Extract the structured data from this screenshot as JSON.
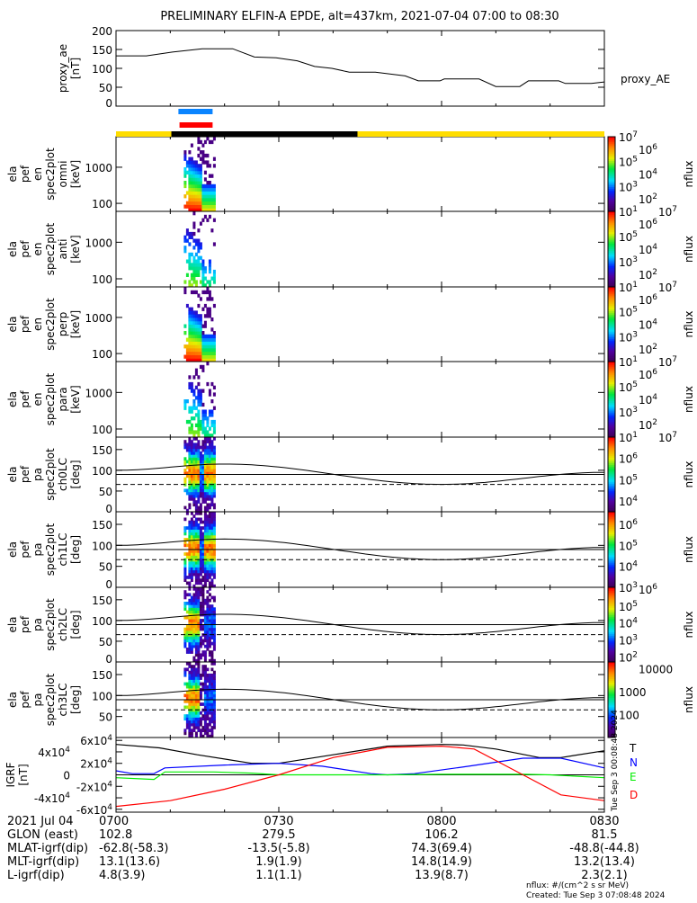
{
  "title": "PRELIMINARY ELFIN-A EPDE, alt=437km, 2021-07-04 07:00 to 08:30",
  "colors": {
    "blue_bar": "#0a84ff",
    "red_bar": "#ff0000",
    "sun": "#ffdd00",
    "shadow": "#000000",
    "T": "#000000",
    "N": "#0000ff",
    "E": "#00ee00",
    "D": "#ff0000"
  },
  "chart_data": [
    {
      "type": "line",
      "name": "proxy_ae",
      "ylabel_lines": [
        "proxy_ae",
        "[nT]"
      ],
      "legend": "proxy_AE",
      "ylim": [
        0,
        200
      ],
      "yticks": [
        "0",
        "50",
        "100",
        "150",
        "200"
      ],
      "ytick_values": [
        0,
        50,
        100,
        150,
        200
      ],
      "x_minutes": [
        0,
        5.6,
        10.4,
        15.9,
        21.5,
        25.5,
        29.5,
        33.4,
        36.6,
        39.8,
        43,
        47.8,
        53.3,
        55.7,
        59.7,
        60.5,
        66.9,
        70,
        74.4,
        76,
        81.6,
        82.8,
        87.6,
        90
      ],
      "values": [
        133,
        133,
        143,
        152,
        152,
        130,
        128,
        120,
        105,
        100,
        90,
        90,
        80,
        67,
        67,
        72,
        72,
        52,
        52,
        67,
        67,
        60,
        60,
        64
      ]
    },
    {
      "type": "heatmap",
      "name": "spec-omni",
      "ylabel_lines": [
        "ela",
        "pef",
        "en",
        "spec2plot",
        "omni",
        "[keV]"
      ],
      "yscale": "log",
      "ylim": [
        60,
        7000
      ],
      "yticks": [
        "100",
        "1000"
      ],
      "ytick_values": [
        100,
        1000
      ],
      "active_minutes": [
        12.5,
        18.3
      ],
      "colorbar": {
        "label": "nflux",
        "ticks": [
          {
            "b": "10",
            "e": "7"
          },
          {
            "b": "10",
            "e": "6"
          },
          {
            "b": "10",
            "e": "5"
          },
          {
            "b": "10",
            "e": "4"
          },
          {
            "b": "10",
            "e": "3"
          },
          {
            "b": "10",
            "e": "2"
          },
          {
            "b": "10",
            "e": "1"
          }
        ],
        "range_exp": [
          1,
          7
        ]
      }
    },
    {
      "type": "heatmap",
      "name": "spec-anti",
      "ylabel_lines": [
        "ela",
        "pef",
        "en",
        "spec2plot",
        "anti",
        "[keV]"
      ],
      "yscale": "log",
      "ylim": [
        60,
        7000
      ],
      "yticks": [
        "100",
        "1000"
      ],
      "ytick_values": [
        100,
        1000
      ],
      "active_minutes": [
        12.5,
        18.3
      ],
      "colorbar": {
        "label": "nflux",
        "ticks": [
          {
            "b": "10",
            "e": "7"
          },
          {
            "b": "10",
            "e": "6"
          },
          {
            "b": "10",
            "e": "5"
          },
          {
            "b": "10",
            "e": "4"
          },
          {
            "b": "10",
            "e": "3"
          },
          {
            "b": "10",
            "e": "2"
          },
          {
            "b": "10",
            "e": "1"
          }
        ],
        "range_exp": [
          1,
          7
        ]
      }
    },
    {
      "type": "heatmap",
      "name": "spec-perp",
      "ylabel_lines": [
        "ela",
        "pef",
        "en",
        "spec2plot",
        "perp",
        "[keV]"
      ],
      "yscale": "log",
      "ylim": [
        60,
        7000
      ],
      "yticks": [
        "100",
        "1000"
      ],
      "ytick_values": [
        100,
        1000
      ],
      "active_minutes": [
        12.5,
        18.3
      ],
      "colorbar": {
        "label": "nflux",
        "ticks": [
          {
            "b": "10",
            "e": "7"
          },
          {
            "b": "10",
            "e": "6"
          },
          {
            "b": "10",
            "e": "5"
          },
          {
            "b": "10",
            "e": "4"
          },
          {
            "b": "10",
            "e": "3"
          },
          {
            "b": "10",
            "e": "2"
          },
          {
            "b": "10",
            "e": "1"
          }
        ],
        "range_exp": [
          1,
          7
        ]
      }
    },
    {
      "type": "heatmap",
      "name": "spec-para",
      "ylabel_lines": [
        "ela",
        "pef",
        "en",
        "spec2plot",
        "para",
        "[keV]"
      ],
      "yscale": "log",
      "ylim": [
        60,
        7000
      ],
      "yticks": [
        "100",
        "1000"
      ],
      "ytick_values": [
        100,
        1000
      ],
      "active_minutes": [
        12.5,
        18.3
      ],
      "colorbar": {
        "label": "nflux",
        "ticks": [
          {
            "b": "10",
            "e": "7"
          },
          {
            "b": "10",
            "e": "6"
          },
          {
            "b": "10",
            "e": "5"
          },
          {
            "b": "10",
            "e": "4"
          },
          {
            "b": "10",
            "e": "3"
          },
          {
            "b": "10",
            "e": "2"
          },
          {
            "b": "10",
            "e": "1"
          }
        ],
        "range_exp": [
          1,
          7
        ]
      }
    },
    {
      "type": "heatmap",
      "name": "pa-ch0LC",
      "ylabel_lines": [
        "ela",
        "pef",
        "pa",
        "spec2plot",
        "ch0LC",
        "[deg]"
      ],
      "ylim": [
        0,
        180
      ],
      "yticks": [
        "0",
        "50",
        "100",
        "150"
      ],
      "ytick_values": [
        0,
        50,
        100,
        150
      ],
      "active_minutes": [
        12.5,
        18.3
      ],
      "colorbar": {
        "label": "nflux",
        "ticks": [
          {
            "b": "10",
            "e": "7"
          },
          {
            "b": "10",
            "e": "6"
          },
          {
            "b": "10",
            "e": "5"
          },
          {
            "b": "10",
            "e": "4"
          }
        ],
        "range_exp": [
          3.5,
          7
        ]
      }
    },
    {
      "type": "heatmap",
      "name": "pa-ch1LC",
      "ylabel_lines": [
        "ela",
        "pef",
        "pa",
        "spec2plot",
        "ch1LC",
        "[deg]"
      ],
      "ylim": [
        0,
        180
      ],
      "yticks": [
        "0",
        "50",
        "100",
        "150"
      ],
      "ytick_values": [
        0,
        50,
        100,
        150
      ],
      "active_minutes": [
        12.5,
        18.3
      ],
      "colorbar": {
        "label": "nflux",
        "ticks": [
          {
            "b": "10",
            "e": "6"
          },
          {
            "b": "10",
            "e": "5"
          },
          {
            "b": "10",
            "e": "4"
          },
          {
            "b": "10",
            "e": "3"
          }
        ],
        "range_exp": [
          3,
          6.6
        ]
      }
    },
    {
      "type": "heatmap",
      "name": "pa-ch2LC",
      "ylabel_lines": [
        "ela",
        "pef",
        "pa",
        "spec2plot",
        "ch2LC",
        "[deg]"
      ],
      "ylim": [
        0,
        180
      ],
      "yticks": [
        "0",
        "50",
        "100",
        "150"
      ],
      "ytick_values": [
        0,
        50,
        100,
        150
      ],
      "active_minutes": [
        12.5,
        18.3
      ],
      "colorbar": {
        "label": "nflux",
        "ticks": [
          {
            "b": "10",
            "e": "6"
          },
          {
            "b": "10",
            "e": "5"
          },
          {
            "b": "10",
            "e": "4"
          },
          {
            "b": "10",
            "e": "3"
          },
          {
            "b": "10",
            "e": "2"
          }
        ],
        "range_exp": [
          1.7,
          6.1
        ]
      }
    },
    {
      "type": "heatmap",
      "name": "pa-ch3LC",
      "ylabel_lines": [
        "ela",
        "pef",
        "pa",
        "spec2plot",
        "ch3LC",
        "[deg]"
      ],
      "ylim": [
        0,
        180
      ],
      "yticks": [
        "50",
        "100",
        "150"
      ],
      "ytick_values": [
        50,
        100,
        150
      ],
      "active_minutes": [
        12.5,
        18.3
      ],
      "colorbar": {
        "label": "nflux",
        "ticks": [
          {
            "b": "10000",
            "e": ""
          },
          {
            "b": "1000",
            "e": ""
          },
          {
            "b": "100",
            "e": ""
          },
          {
            "b": "10",
            "e": ""
          }
        ],
        "range_exp": [
          1,
          4.3
        ]
      }
    },
    {
      "type": "line",
      "name": "igrf",
      "ylabel_lines": [
        "IGRF",
        "[nT]"
      ],
      "ylim": [
        -65000,
        65000
      ],
      "yticks": [
        {
          "b": "6x10",
          "e": "4"
        },
        {
          "b": "4x10",
          "e": "4"
        },
        {
          "b": "2x10",
          "e": "4"
        },
        {
          "b": "0",
          "e": ""
        },
        {
          "b": "-2x10",
          "e": "4"
        },
        {
          "b": "-4x10",
          "e": "4"
        },
        {
          "b": "-6x10",
          "e": "4"
        }
      ],
      "ytick_values": [
        60000,
        40000,
        20000,
        0,
        -20000,
        -40000,
        -60000
      ],
      "series": [
        {
          "name": "T",
          "x_minutes": [
            0,
            8,
            15,
            25,
            30,
            40,
            50,
            60,
            64,
            70,
            78,
            82,
            90
          ],
          "values": [
            53000,
            47000,
            35000,
            20000,
            20000,
            35000,
            50000,
            53000,
            52000,
            45000,
            30000,
            30000,
            42000
          ]
        },
        {
          "name": "N",
          "x_minutes": [
            0,
            3,
            7,
            9,
            20,
            30,
            38,
            47,
            50,
            55,
            65,
            75,
            82,
            90
          ],
          "values": [
            7000,
            2000,
            2000,
            12000,
            17000,
            20000,
            15000,
            2000,
            0,
            2000,
            15000,
            29000,
            29000,
            12000
          ]
        },
        {
          "name": "E",
          "x_minutes": [
            0,
            7,
            9,
            18,
            25,
            30,
            50,
            60,
            75,
            80,
            90
          ],
          "values": [
            -5000,
            -8000,
            5000,
            5000,
            3000,
            0,
            0,
            1000,
            1000,
            0,
            -5000
          ]
        },
        {
          "name": "D",
          "x_minutes": [
            0,
            10,
            20,
            30,
            40,
            50,
            60,
            66,
            75,
            82,
            90
          ],
          "values": [
            -55000,
            -45000,
            -25000,
            0,
            30000,
            48000,
            50000,
            45000,
            0,
            -35000,
            -45000
          ]
        }
      ]
    }
  ],
  "time_axis": {
    "ticks": [
      "0700",
      "0730",
      "0800",
      "0830"
    ],
    "tick_minutes": [
      0,
      30,
      60,
      90
    ],
    "date": "2021 Jul 04"
  },
  "ephemeris": [
    {
      "label": "GLON (east)",
      "values": [
        "102.8",
        "279.5",
        "106.2",
        "81.5"
      ]
    },
    {
      "label": "MLAT-igrf(dip)",
      "values": [
        "-62.8(-58.3)",
        "-13.5(-5.8)",
        "74.3(69.4)",
        "-48.8(-44.8)"
      ]
    },
    {
      "label": "MLT-igrf(dip)",
      "values": [
        "13.1(13.6)",
        "1.9(1.9)",
        "14.8(14.9)",
        "13.2(13.4)"
      ]
    },
    {
      "label": "L-igrf(dip)",
      "values": [
        "4.8(3.9)",
        "1.1(1.1)",
        "13.9(8.7)",
        "2.3(2.1)"
      ]
    }
  ],
  "orbit_bars": {
    "blue_minutes": [
      11.5,
      17.8
    ],
    "red_minutes": [
      11.7,
      17.8
    ],
    "shadow_minutes": [
      10.2,
      44.5
    ]
  },
  "footer": {
    "units": "nflux: #/(cm^2 s sr MeV)",
    "created": "Created: Tue Sep  3 07:08:48 2024",
    "side_stamp": "Tue Sep  3 00:08:48 2024"
  }
}
